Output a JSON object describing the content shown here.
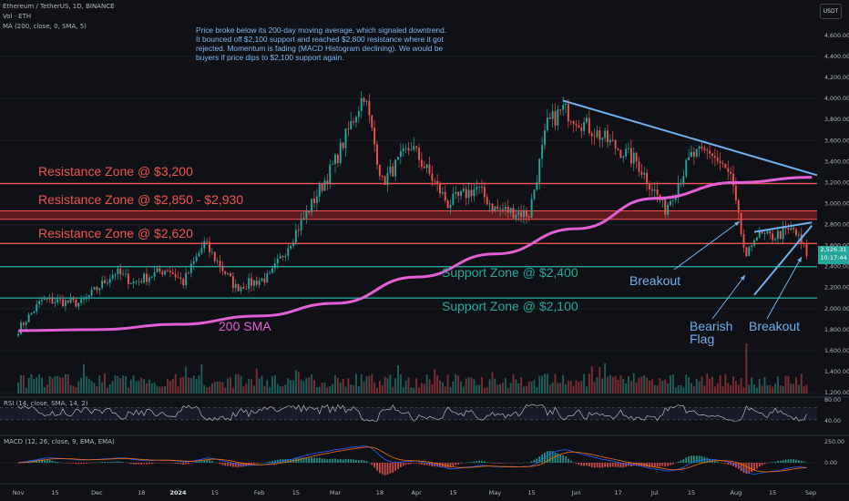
{
  "header": {
    "symbol_line": "Ethereum / TetherUS, 1D, BINANCE",
    "volume_line": "Vol · ETH",
    "ma_line": "MA (200, close, 0, SMA, 5)",
    "currency": "USDT"
  },
  "annotation": "Price broke below its 200-day moving average, which signaled downtrend. It bounced off $2,100 support and reached $2,800 resistance where it got rejected. Momentum is fading (MACD Histogram declining). We would be buyers if price dips to $2,100 support again.",
  "zone_labels": {
    "r3200": "Resistance Zone @ $3,200",
    "r2850": "Resistance Zone @ $2,850 - $2,930",
    "r2620": "Resistance Zone @ $2,620",
    "s2400": "Support Zone @ $2,400",
    "s2100": "Support Zone @ $2,100"
  },
  "callouts": {
    "breakout1": "Breakout",
    "bearish_flag": "Bearish Flag",
    "breakout2": "Breakout",
    "sma200": "200 SMA"
  },
  "price_tag": {
    "price": "2,526.31",
    "countdown": "10:17:44"
  },
  "indicators": {
    "rsi_label": "RSI (14, close, SMA, 14, 2)",
    "macd_label": "MACD (12, 26, close, 9, EMA, EMA)"
  },
  "colors": {
    "background": "#0f1116",
    "up": "#26a69a",
    "down": "#ef5350",
    "sma": "#e35fd6",
    "trendline": "#6fb0ee",
    "macd": "#2962ff",
    "signal": "#ff6d00",
    "rsi": "#b2b5be"
  },
  "chart_data": {
    "type": "candlestick",
    "x_ticks": [
      "Nov",
      "15",
      "Dec",
      "18",
      "2024",
      "15",
      "Feb",
      "15",
      "Mar",
      "18",
      "Apr",
      "15",
      "May",
      "15",
      "Jun",
      "17",
      "Jul",
      "15",
      "Aug",
      "15",
      "Sep"
    ],
    "y_ticks": [
      "1,200.00",
      "1,400.00",
      "1,600.00",
      "1,800.00",
      "2,000.00",
      "2,200.00",
      "2,400.00",
      "2,600.00",
      "2,800.00",
      "3,000.00",
      "3,200.00",
      "3,400.00",
      "3,600.00",
      "3,800.00",
      "4,000.00",
      "4,200.00",
      "4,400.00",
      "4,600.00"
    ],
    "ylim": [
      1150,
      4700
    ],
    "price_path": [
      {
        "date": "2023-11-01",
        "close": 1800
      },
      {
        "date": "2023-11-10",
        "close": 2080
      },
      {
        "date": "2023-11-25",
        "close": 2050
      },
      {
        "date": "2023-12-08",
        "close": 2350
      },
      {
        "date": "2023-12-15",
        "close": 2250
      },
      {
        "date": "2023-12-28",
        "close": 2380
      },
      {
        "date": "2024-01-03",
        "close": 2250
      },
      {
        "date": "2024-01-11",
        "close": 2620
      },
      {
        "date": "2024-01-23",
        "close": 2200
      },
      {
        "date": "2024-02-05",
        "close": 2300
      },
      {
        "date": "2024-02-20",
        "close": 2950
      },
      {
        "date": "2024-03-01",
        "close": 3400
      },
      {
        "date": "2024-03-12",
        "close": 4050
      },
      {
        "date": "2024-03-19",
        "close": 3200
      },
      {
        "date": "2024-03-30",
        "close": 3550
      },
      {
        "date": "2024-04-13",
        "close": 3000
      },
      {
        "date": "2024-04-24",
        "close": 3150
      },
      {
        "date": "2024-05-01",
        "close": 2950
      },
      {
        "date": "2024-05-14",
        "close": 2900
      },
      {
        "date": "2024-05-21",
        "close": 3750
      },
      {
        "date": "2024-05-27",
        "close": 3900
      },
      {
        "date": "2024-06-10",
        "close": 3650
      },
      {
        "date": "2024-06-24",
        "close": 3400
      },
      {
        "date": "2024-07-05",
        "close": 2950
      },
      {
        "date": "2024-07-15",
        "close": 3450
      },
      {
        "date": "2024-07-22",
        "close": 3500
      },
      {
        "date": "2024-07-30",
        "close": 3250
      },
      {
        "date": "2024-08-05",
        "close": 2450
      },
      {
        "date": "2024-08-08",
        "close": 2700
      },
      {
        "date": "2024-08-14",
        "close": 2680
      },
      {
        "date": "2024-08-23",
        "close": 2750
      },
      {
        "date": "2024-08-28",
        "close": 2526
      }
    ],
    "sma200": [
      {
        "date": "2023-11-01",
        "value": 1790
      },
      {
        "date": "2023-12-01",
        "value": 1800
      },
      {
        "date": "2024-01-01",
        "value": 1850
      },
      {
        "date": "2024-02-01",
        "value": 1930
      },
      {
        "date": "2024-03-01",
        "value": 2050
      },
      {
        "date": "2024-04-01",
        "value": 2300
      },
      {
        "date": "2024-05-01",
        "value": 2520
      },
      {
        "date": "2024-06-01",
        "value": 2760
      },
      {
        "date": "2024-07-01",
        "value": 3050
      },
      {
        "date": "2024-08-01",
        "value": 3200
      },
      {
        "date": "2024-08-30",
        "value": 3250
      }
    ],
    "zones": [
      {
        "name": "Resistance Zone @ $3,200",
        "low": 3180,
        "high": 3200
      },
      {
        "name": "Resistance Zone @ $2,850 - $2,930",
        "low": 2850,
        "high": 2930
      },
      {
        "name": "Resistance Zone @ $2,620",
        "low": 2610,
        "high": 2630
      },
      {
        "name": "Support Zone @ $2,400",
        "low": 2390,
        "high": 2410
      },
      {
        "name": "Support Zone @ $2,100",
        "low": 2090,
        "high": 2110
      }
    ],
    "trendlines": [
      {
        "from": {
          "date": "2024-05-27",
          "price": 3980
        },
        "to": {
          "date": "2024-09-01",
          "price": 3270
        }
      },
      {
        "from": {
          "date": "2024-08-08",
          "price": 2730
        },
        "to": {
          "date": "2024-08-30",
          "price": 2820
        }
      },
      {
        "from": {
          "date": "2024-08-08",
          "price": 2130
        },
        "to": {
          "date": "2024-08-30",
          "price": 2790
        }
      }
    ],
    "rsi": {
      "levels": [
        70,
        30
      ],
      "axis_ticks": [
        "80.00",
        "40.00"
      ]
    },
    "macd": {
      "axis_ticks": [
        "250.00",
        "0.00"
      ]
    }
  }
}
